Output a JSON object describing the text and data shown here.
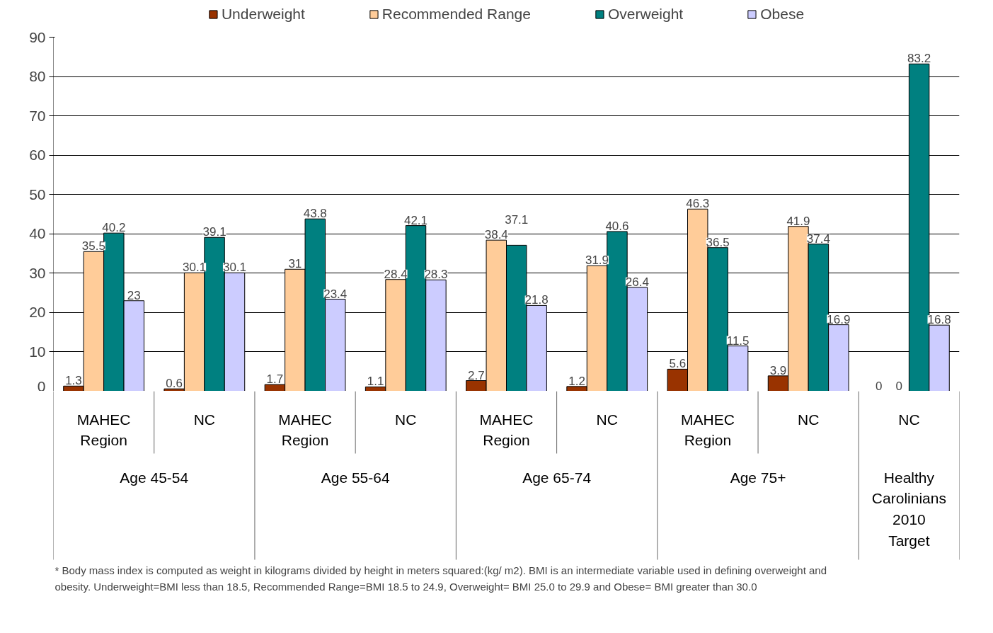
{
  "chart_data": {
    "type": "bar",
    "categories": [
      "MAHEC Region",
      "NC",
      "MAHEC Region",
      "NC",
      "MAHEC Region",
      "NC",
      "MAHEC Region",
      "NC",
      "NC"
    ],
    "series": [
      {
        "name": "Underweight",
        "color": "#993300",
        "values": [
          1.3,
          0.6,
          1.7,
          1.1,
          2.7,
          1.2,
          5.6,
          3.9,
          0
        ]
      },
      {
        "name": "Recommended Range",
        "color": "#ffcc99",
        "values": [
          35.5,
          30.1,
          31,
          28.4,
          38.4,
          31.9,
          46.3,
          41.9,
          0
        ]
      },
      {
        "name": "Overweight",
        "color": "#008080",
        "values": [
          40.2,
          39.1,
          43.8,
          42.1,
          37.1,
          40.6,
          36.5,
          37.4,
          83.2
        ]
      },
      {
        "name": "Obese",
        "color": "#ccccff",
        "values": [
          23,
          30.1,
          23.4,
          28.3,
          21.8,
          26.4,
          11.5,
          16.9,
          16.8
        ]
      }
    ],
    "annotations": [
      "Age 45-54",
      "Age 55-64",
      "Age 65-74",
      "Age 75+",
      "Healthy Carolinians 2010 Target",
      "* Body mass index is computed as weight in kilograms divided by height in meters squared:(kg/ m2).  BMI is an intermediate variable used in defining overweight and obesity. Underweight=BMI less than 18.5, Recommended Range=BMI 18.5 to 24.9, Overweight= BMI 25.0 to 29.9 and Obese= BMI greater than 30.0"
    ],
    "ylim": [
      0,
      90
    ],
    "yticks": [
      0,
      10,
      20,
      30,
      40,
      50,
      60,
      70,
      80,
      90
    ],
    "grid": "y",
    "legend": "top",
    "data_labels": true
  }
}
